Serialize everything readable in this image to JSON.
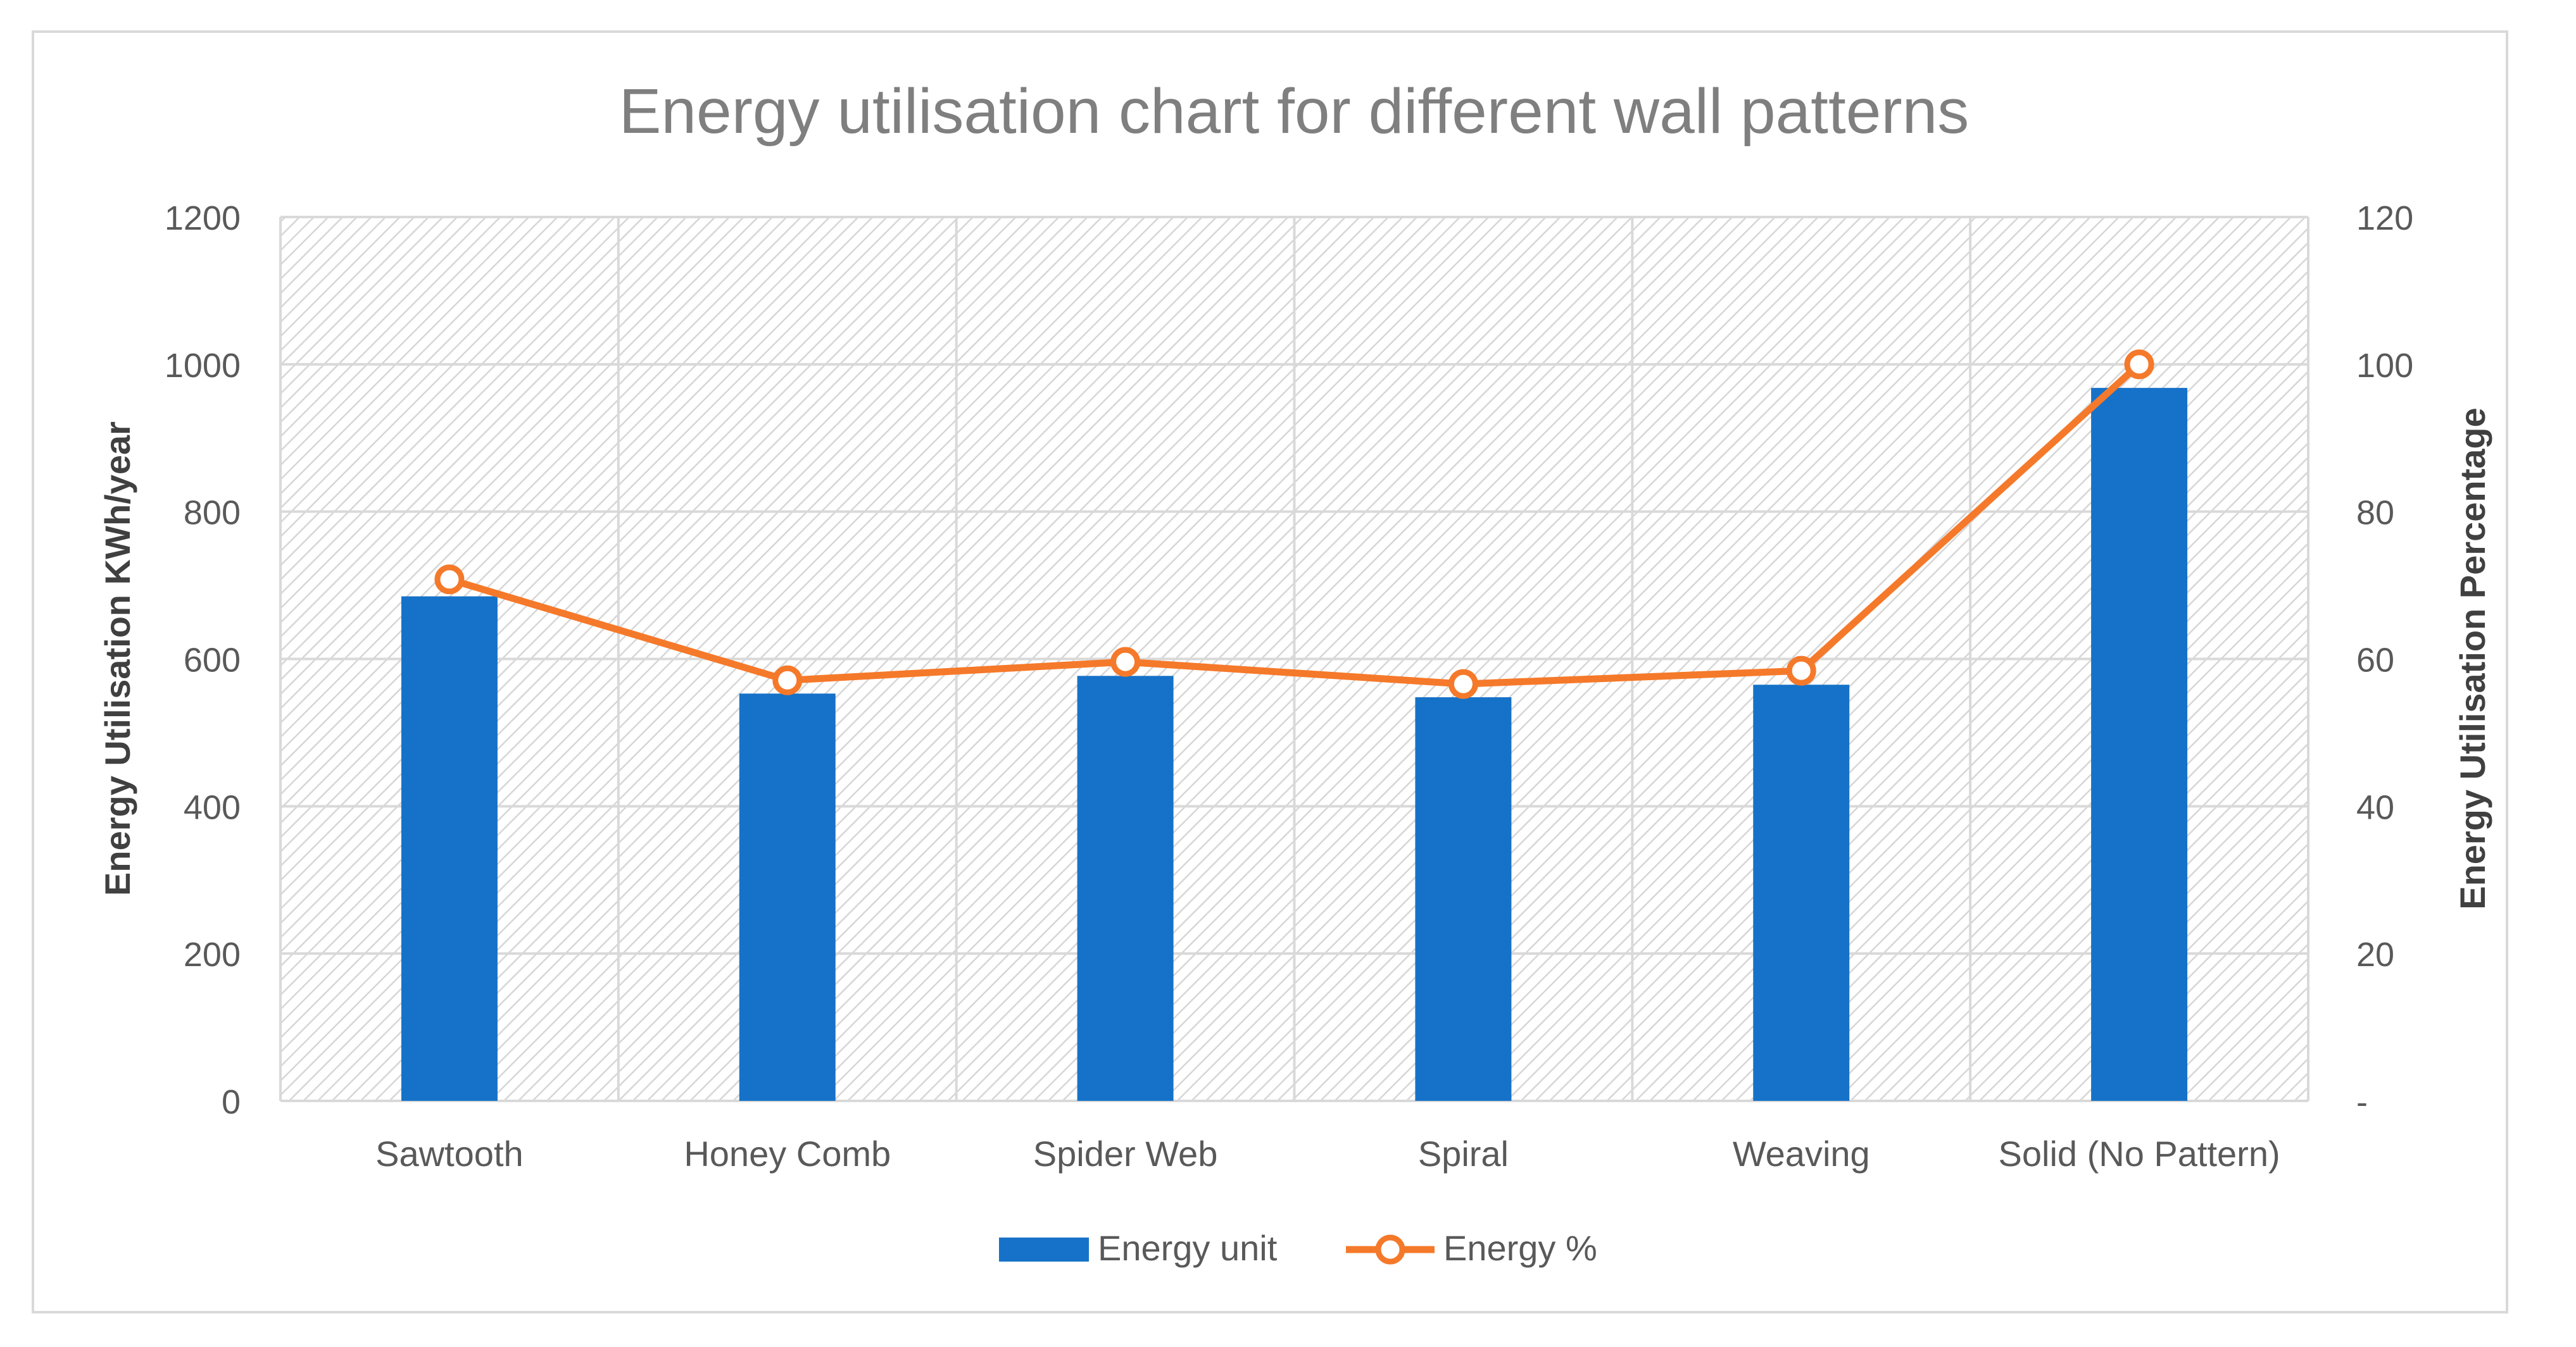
{
  "chart_data": {
    "type": "bar",
    "title": "Energy utilisation chart for different wall patterns",
    "categories": [
      "Sawtooth",
      "Honey Comb",
      "Spider Web",
      "Spiral",
      "Weaving",
      "Solid (No Pattern)"
    ],
    "series": [
      {
        "name": "Energy unit",
        "kind": "bar",
        "axis": "left",
        "color": "#1672c8",
        "values": [
          685,
          553,
          577,
          548,
          565,
          968
        ]
      },
      {
        "name": "Energy %",
        "kind": "line",
        "axis": "right",
        "color": "#f5792a",
        "values": [
          70.8,
          57.1,
          59.6,
          56.6,
          58.4,
          100
        ]
      }
    ],
    "ylabel": "Energy Utilisation KWh/year",
    "y2label": "Energy Utilisation Percentage",
    "ylim": [
      0,
      1200
    ],
    "y2lim": [
      0,
      120
    ],
    "yticks": [
      "0",
      "200",
      "400",
      "600",
      "800",
      "1000",
      "1200"
    ],
    "y2ticks": [
      "-",
      "20",
      "40",
      "60",
      "80",
      "100",
      "120"
    ],
    "grid": true,
    "legend_position": "bottom"
  }
}
